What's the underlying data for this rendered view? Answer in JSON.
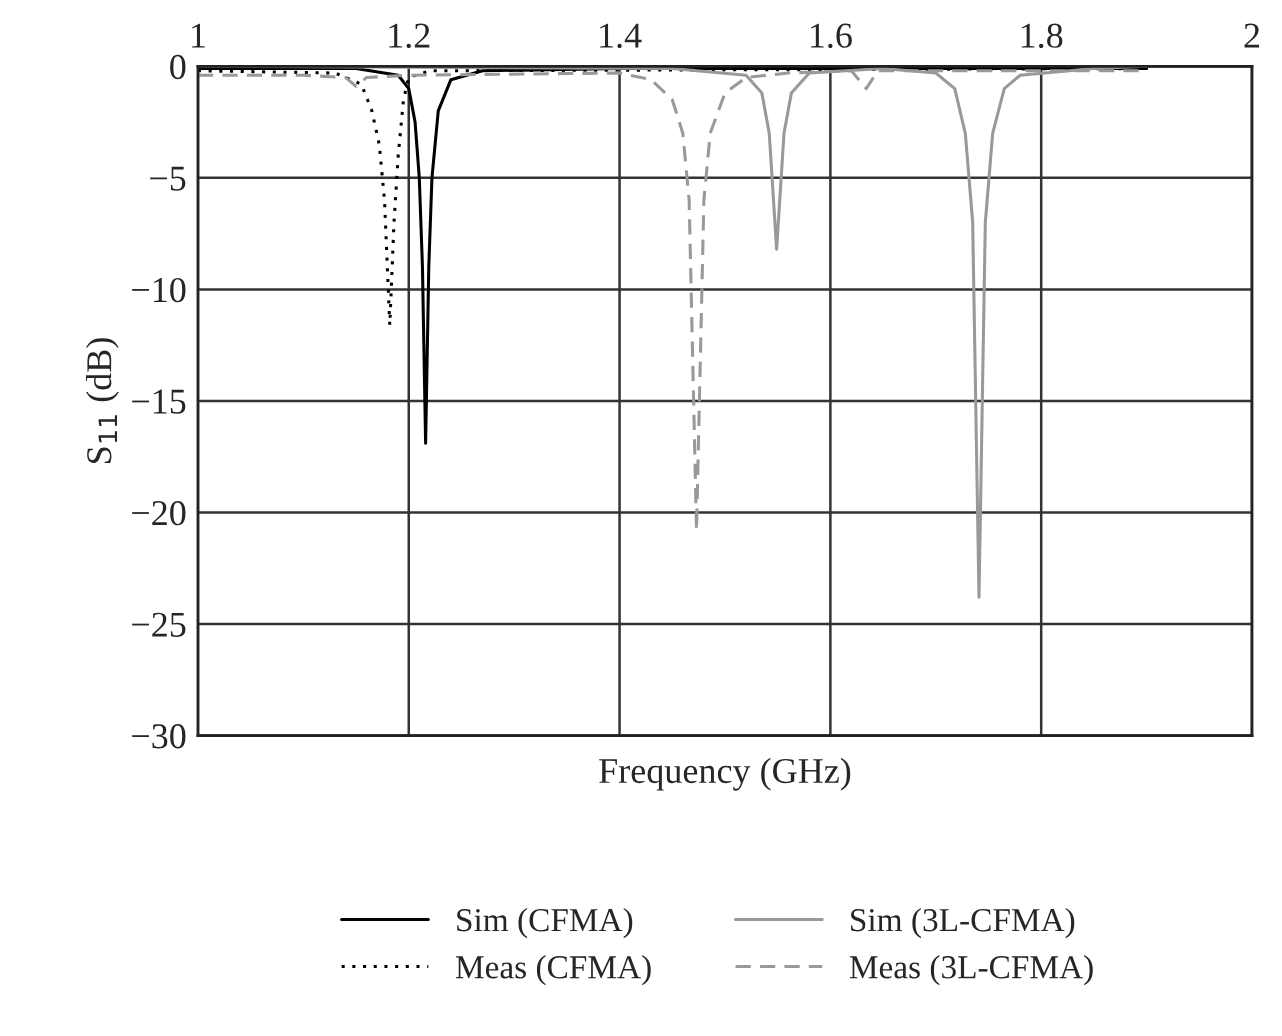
{
  "chart_data": {
    "type": "line",
    "xlabel": "Frequency (GHz)",
    "ylabel": "S$_{11}$ (dB)",
    "xlim": [
      1,
      2
    ],
    "ylim": [
      -30,
      0
    ],
    "xticks": [
      1,
      1.2,
      1.4,
      1.6,
      1.8,
      2
    ],
    "yticks": [
      0,
      {
        "value": -5,
        "label": "−5"
      },
      {
        "value": -10,
        "label": "−10"
      },
      {
        "value": -15,
        "label": "−15"
      },
      {
        "value": -20,
        "label": "−20"
      },
      {
        "value": -25,
        "label": "−25"
      },
      {
        "value": -30,
        "label": "−30"
      }
    ],
    "grid": true,
    "legend": "bottom",
    "series": [
      {
        "name": "Sim (CFMA)",
        "color": "#000000",
        "line_style": "solid",
        "x": [
          1,
          1.15,
          1.19,
          1.2,
          1.206,
          1.21,
          1.213,
          1.216,
          1.219,
          1.222,
          1.228,
          1.24,
          1.27,
          1.4,
          1.9
        ],
        "values": [
          -0.1,
          -0.1,
          -0.4,
          -1,
          -2.5,
          -5,
          -9,
          -16.9,
          -9,
          -5,
          -2,
          -0.6,
          -0.2,
          -0.1,
          -0.1
        ]
      },
      {
        "name": "Meas (CFMA)",
        "color": "#000000",
        "line_style": "dotted",
        "x": [
          1,
          1.13,
          1.155,
          1.165,
          1.172,
          1.177,
          1.182,
          1.186,
          1.19,
          1.195,
          1.2,
          1.22,
          1.9
        ],
        "values": [
          -0.2,
          -0.3,
          -0.8,
          -2,
          -3.5,
          -6,
          -11.6,
          -7,
          -4,
          -1.5,
          -0.5,
          -0.2,
          -0.1
        ]
      },
      {
        "name": "Sim (3L-CFMA)",
        "color": "#999999",
        "line_style": "solid",
        "x": [
          1,
          1.45,
          1.52,
          1.535,
          1.542,
          1.549,
          1.556,
          1.563,
          1.58,
          1.65,
          1.7,
          1.718,
          1.728,
          1.735,
          1.741,
          1.747,
          1.754,
          1.765,
          1.78,
          1.85,
          1.9
        ],
        "values": [
          0,
          -0.1,
          -0.4,
          -1.2,
          -3,
          -8.2,
          -3,
          -1.2,
          -0.3,
          -0.1,
          -0.3,
          -1,
          -3,
          -7,
          -23.8,
          -7,
          -3,
          -1,
          -0.4,
          -0.1,
          0
        ]
      },
      {
        "name": "Meas (3L-CFMA)",
        "color": "#999999",
        "line_style": "dashed",
        "x": [
          1,
          1.1,
          1.14,
          1.15,
          1.16,
          1.2,
          1.4,
          1.43,
          1.45,
          1.46,
          1.466,
          1.473,
          1.48,
          1.486,
          1.5,
          1.52,
          1.56,
          1.62,
          1.634,
          1.645,
          1.7,
          1.9
        ],
        "values": [
          -0.4,
          -0.4,
          -0.5,
          -0.9,
          -0.5,
          -0.4,
          -0.3,
          -0.6,
          -1.5,
          -3,
          -6,
          -20.8,
          -6,
          -3,
          -1.2,
          -0.5,
          -0.3,
          -0.2,
          -1.0,
          -0.2,
          -0.2,
          -0.2
        ]
      }
    ]
  }
}
